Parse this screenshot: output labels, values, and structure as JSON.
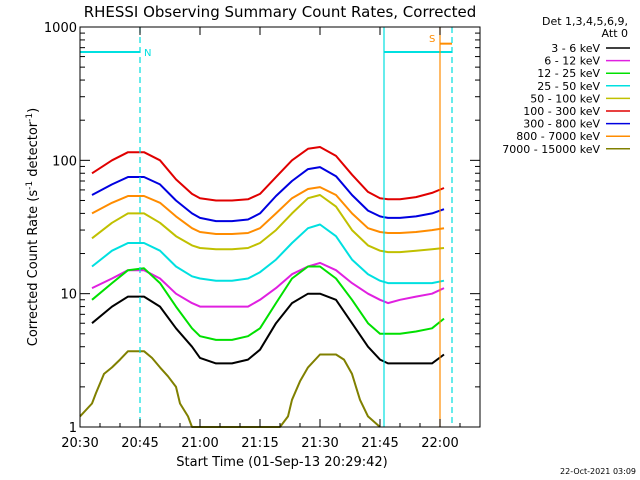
{
  "chart_data": {
    "type": "line",
    "title": "RHESSI Observing Summary Count Rates, Corrected",
    "xlabel": "Start Time (01-Sep-13 20:29:42)",
    "ylabel": "Corrected Count Rate (s",
    "ylabel_sup1": "-1",
    "ylabel_mid": " detector",
    "ylabel_sup2": "-1",
    "ylabel_end": ")",
    "yscale": "log",
    "ylim": [
      1,
      1000
    ],
    "xlim_minutes": [
      0,
      100
    ],
    "x_ticks": [
      {
        "label": "20:30",
        "min": 0
      },
      {
        "label": "20:45",
        "min": 15
      },
      {
        "label": "21:00",
        "min": 30
      },
      {
        "label": "21:15",
        "min": 45
      },
      {
        "label": "21:30",
        "min": 60
      },
      {
        "label": "21:45",
        "min": 75
      },
      {
        "label": "22:00",
        "min": 90
      }
    ],
    "y_ticks": [
      {
        "label": "1",
        "value": 1
      },
      {
        "label": "10",
        "value": 10
      },
      {
        "label": "100",
        "value": 100
      },
      {
        "label": "1000",
        "value": 1000
      }
    ],
    "legend_header": [
      "Det 1,3,4,5,6,9,",
      "Att 0"
    ],
    "legend_position": "right",
    "series": [
      {
        "name": "3 - 6 keV",
        "color": "#000000",
        "x": [
          3,
          8,
          12,
          16,
          20,
          24,
          28,
          30,
          34,
          38,
          42,
          45,
          49,
          53,
          57,
          60,
          64,
          68,
          72,
          75,
          77,
          80,
          84,
          88,
          91
        ],
        "y": [
          6,
          8,
          9.5,
          9.5,
          8,
          5.5,
          4,
          3.3,
          3,
          3,
          3.2,
          3.8,
          6,
          8.5,
          10,
          10,
          9,
          6,
          4,
          3.2,
          3,
          3,
          3,
          3,
          3.5
        ]
      },
      {
        "name": "6 - 12 keV",
        "color": "#e020e0",
        "x": [
          3,
          8,
          12,
          16,
          20,
          24,
          28,
          30,
          34,
          38,
          42,
          45,
          49,
          53,
          57,
          60,
          64,
          68,
          72,
          75,
          77,
          80,
          84,
          88,
          91
        ],
        "y": [
          11,
          13,
          15,
          15,
          13,
          10,
          8.5,
          8,
          8,
          8,
          8,
          9,
          11,
          14,
          16,
          17,
          15,
          12,
          10,
          9,
          8.5,
          9,
          9.5,
          10,
          11
        ]
      },
      {
        "name": "12 - 25 keV",
        "color": "#00e000",
        "x": [
          3,
          8,
          12,
          16,
          20,
          24,
          28,
          30,
          34,
          38,
          42,
          45,
          49,
          53,
          57,
          60,
          64,
          68,
          72,
          75,
          77,
          80,
          84,
          88,
          91
        ],
        "y": [
          9,
          12,
          15,
          15.5,
          12,
          8,
          5.5,
          4.8,
          4.5,
          4.5,
          4.8,
          5.5,
          8.5,
          13,
          16,
          16,
          13,
          9,
          6,
          5,
          5,
          5,
          5.2,
          5.5,
          6.5
        ]
      },
      {
        "name": "25 - 50 keV",
        "color": "#00e0e0",
        "x": [
          3,
          8,
          12,
          16,
          20,
          24,
          28,
          30,
          34,
          38,
          42,
          45,
          49,
          53,
          57,
          60,
          64,
          68,
          72,
          75,
          77,
          80,
          84,
          88,
          91
        ],
        "y": [
          16,
          21,
          24,
          24,
          21,
          16,
          13.5,
          13,
          12.5,
          12.5,
          13,
          14.5,
          18,
          24,
          31,
          33,
          27,
          18,
          14,
          12.5,
          12,
          12,
          12,
          12,
          12.5
        ]
      },
      {
        "name": "50 - 100 keV",
        "color": "#c0c000",
        "x": [
          3,
          8,
          12,
          16,
          20,
          24,
          28,
          30,
          34,
          38,
          42,
          45,
          49,
          53,
          57,
          60,
          64,
          68,
          72,
          75,
          77,
          80,
          84,
          88,
          91
        ],
        "y": [
          26,
          34,
          40,
          40,
          34,
          27,
          23,
          22,
          21.5,
          21.5,
          22,
          24,
          30,
          40,
          52,
          55,
          45,
          30,
          23,
          21,
          20.5,
          20.5,
          21,
          21.5,
          22
        ]
      },
      {
        "name": "100 - 300 keV",
        "color": "#e00000",
        "x": [
          3,
          8,
          12,
          16,
          20,
          24,
          28,
          30,
          34,
          38,
          42,
          45,
          49,
          53,
          57,
          60,
          64,
          68,
          72,
          75,
          77,
          80,
          84,
          88,
          91
        ],
        "y": [
          80,
          100,
          115,
          115,
          100,
          72,
          56,
          52,
          50,
          50,
          51,
          56,
          75,
          100,
          122,
          126,
          108,
          78,
          58,
          52,
          51,
          51,
          53,
          57,
          62
        ]
      },
      {
        "name": "300 - 800 keV",
        "color": "#0000e0",
        "x": [
          3,
          8,
          12,
          16,
          20,
          24,
          28,
          30,
          34,
          38,
          42,
          45,
          49,
          53,
          57,
          60,
          64,
          68,
          72,
          75,
          77,
          80,
          84,
          88,
          91
        ],
        "y": [
          55,
          66,
          75,
          75,
          66,
          50,
          40,
          37,
          35,
          35,
          36,
          40,
          54,
          70,
          86,
          89,
          76,
          55,
          42,
          38,
          37,
          37,
          38,
          40,
          43
        ]
      },
      {
        "name": "800 - 7000 keV",
        "color": "#ff8c00",
        "x": [
          3,
          8,
          12,
          16,
          20,
          24,
          28,
          30,
          34,
          38,
          42,
          45,
          49,
          53,
          57,
          60,
          64,
          68,
          72,
          75,
          77,
          80,
          84,
          88,
          91
        ],
        "y": [
          40,
          48,
          54,
          54,
          48,
          38,
          31,
          29,
          28,
          28,
          28.5,
          31,
          40,
          52,
          61,
          63,
          55,
          40,
          31,
          29,
          28.5,
          28.5,
          29,
          30,
          31
        ]
      },
      {
        "name": "7000 - 15000 keV",
        "color": "#808000",
        "x": [
          0,
          3,
          4,
          6,
          8,
          10,
          12,
          14,
          16,
          18,
          20,
          22,
          24,
          25,
          27,
          28,
          40,
          50,
          52,
          53,
          55,
          57,
          60,
          62,
          64,
          66,
          68,
          69,
          70,
          72,
          75
        ],
        "y": [
          1.2,
          1.5,
          1.8,
          2.5,
          2.8,
          3.2,
          3.7,
          3.7,
          3.7,
          3.3,
          2.8,
          2.4,
          2,
          1.5,
          1.2,
          1,
          1,
          1,
          1.2,
          1.6,
          2.2,
          2.8,
          3.5,
          3.5,
          3.5,
          3.2,
          2.5,
          2,
          1.6,
          1.2,
          1
        ]
      }
    ],
    "annotations": [
      {
        "type": "hline",
        "color": "#00e0e0",
        "y": 650,
        "x0": 0,
        "x1": 15,
        "label": "N"
      },
      {
        "type": "vline_dashed",
        "color": "#00e0e0",
        "x": 15
      },
      {
        "type": "vline",
        "color": "#00e0e0",
        "x": 76
      },
      {
        "type": "hline",
        "color": "#00e0e0",
        "y": 650,
        "x0": 76,
        "x1": 93
      },
      {
        "type": "vline",
        "color": "#ff8c00",
        "x": 90,
        "label": "S"
      },
      {
        "type": "hline",
        "color": "#ff8c00",
        "y": 750,
        "x0": 90,
        "x1": 93
      },
      {
        "type": "vline_dashed",
        "color": "#00e0e0",
        "x": 93
      }
    ],
    "footer": "22-Oct-2021 03:09"
  }
}
